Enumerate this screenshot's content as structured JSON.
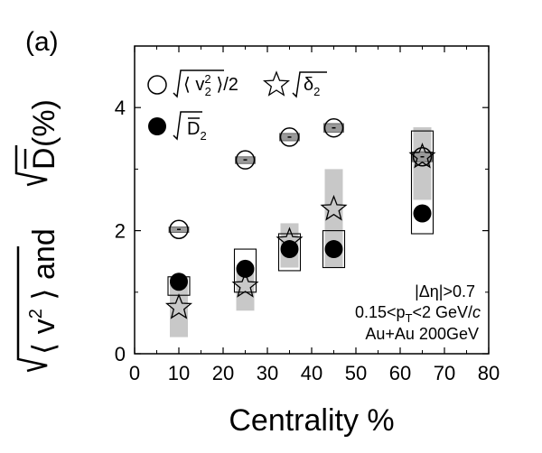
{
  "chart_data": {
    "type": "scatter",
    "panel_label": "(a)",
    "xlabel": "Centrality %",
    "ylabel_left": "⟨ v",
    "ylabel_sup": "2",
    "ylabel_mid": " ⟩ and ",
    "ylabel_D": "D",
    "ylabel_right": " (%)",
    "xlim": [
      0,
      80
    ],
    "ylim": [
      0,
      5
    ],
    "xticks": [
      "0",
      "10",
      "20",
      "30",
      "40",
      "50",
      "60",
      "70",
      "80"
    ],
    "yticks": [
      "0",
      "2",
      "4"
    ],
    "grid": false,
    "legend_position": "top-left",
    "annotations": {
      "line1": "|Δη|>0.7",
      "line2_a": "0.15<p",
      "line2_sub": "T",
      "line2_b": "<2 GeV/",
      "line2_c": "c",
      "line3": "Au+Au 200GeV"
    },
    "legend": {
      "open_circle": "⟨ v",
      "open_circle_sup": "2",
      "open_circle_sub": "2",
      "open_circle_tail": " ⟩/2",
      "star": "δ",
      "star_sub": "2",
      "filled_circle": "D",
      "filled_circle_sub": "2"
    },
    "series": [
      {
        "marker": "open-circle",
        "x": [
          10,
          25,
          35,
          45,
          65
        ],
        "y": [
          2.02,
          3.15,
          3.52,
          3.67,
          3.2
        ],
        "sys": [
          [
            1.97,
            2.06
          ],
          [
            3.09,
            3.2
          ],
          [
            3.46,
            3.58
          ],
          [
            3.6,
            3.74
          ],
          [
            3.12,
            3.28
          ]
        ]
      },
      {
        "marker": "filled-circle",
        "x": [
          10,
          25,
          35,
          45,
          65
        ],
        "y": [
          1.17,
          1.38,
          1.7,
          1.7,
          2.28
        ],
        "sys": [
          [
            0.95,
            1.25
          ],
          [
            1.0,
            1.7
          ],
          [
            1.35,
            1.95
          ],
          [
            1.4,
            2.0
          ],
          [
            1.95,
            3.62
          ]
        ]
      },
      {
        "marker": "star",
        "x": [
          10,
          25,
          35,
          45,
          65
        ],
        "y": [
          0.75,
          1.1,
          1.83,
          2.35,
          3.2
        ],
        "sys": [
          [
            0.27,
            1.25
          ],
          [
            0.7,
            1.4
          ],
          [
            1.4,
            2.12
          ],
          [
            1.4,
            3.0
          ],
          [
            2.5,
            3.68
          ]
        ]
      }
    ]
  }
}
